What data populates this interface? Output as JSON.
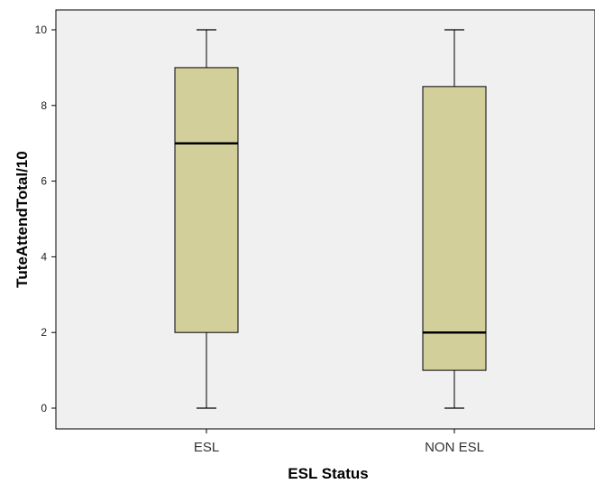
{
  "chart_data": {
    "type": "box",
    "title": "",
    "xlabel": "ESL Status",
    "ylabel": "TuteAttendTotal/10",
    "ylim": [
      -0.6,
      10.6
    ],
    "yticks": [
      0,
      2,
      4,
      6,
      8,
      10
    ],
    "grid": false,
    "legend": "none",
    "categories": [
      "ESL",
      "NON ESL"
    ],
    "boxes": [
      {
        "category": "ESL",
        "min": 0,
        "q1": 2,
        "median": 7,
        "q3": 9,
        "max": 10
      },
      {
        "category": "NON ESL",
        "min": 0,
        "q1": 1,
        "median": 2,
        "q3": 8.5,
        "max": 10
      }
    ],
    "colors": {
      "plot_background": "#f0f0f0",
      "box_fill": "#d3cf9a",
      "line": "#000000"
    }
  }
}
